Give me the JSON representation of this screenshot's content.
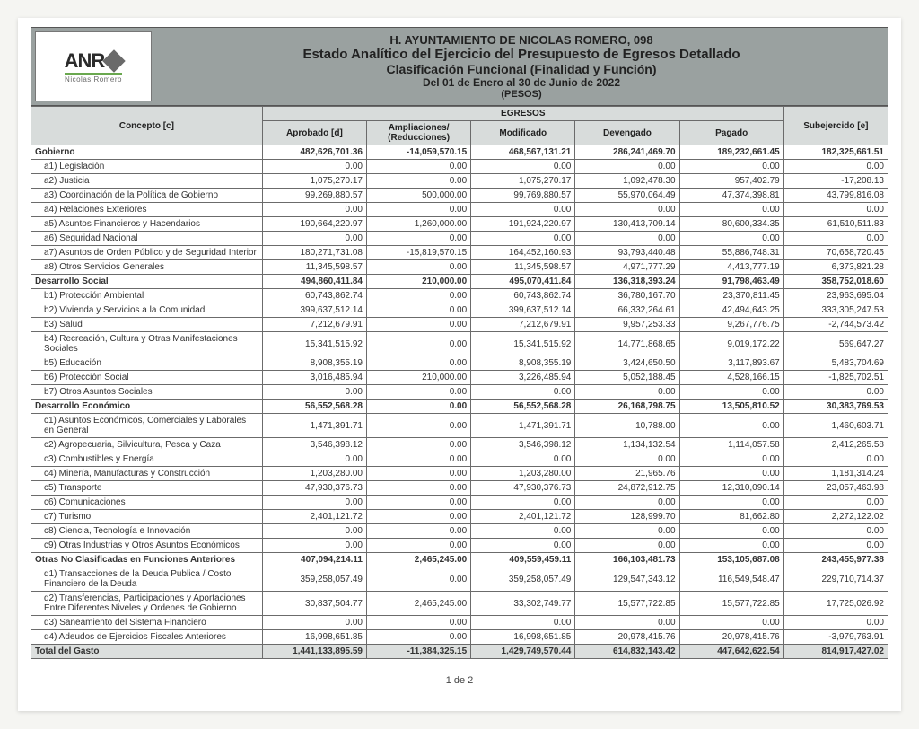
{
  "header": {
    "org_line": "H. AYUNTAMIENTO DE NICOLAS ROMERO, 098",
    "title": "Estado Analítico del Ejercicio del Presupuesto de Egresos Detallado",
    "subtitle": "Clasificación Funcional (Finalidad y Función)",
    "period": "Del 01 de Enero al 30 de Junio de 2022",
    "units": "(PESOS)",
    "logo_text": "ANR",
    "logo_sub": "Nicolas Romero"
  },
  "columns": {
    "concepto": "Concepto [c]",
    "egresos": "EGRESOS",
    "aprobado": "Aprobado [d]",
    "ampliaciones": "Ampliaciones/ (Reducciones)",
    "modificado": "Modificado",
    "devengado": "Devengado",
    "pagado": "Pagado",
    "subejercido": "Subejercido [e]"
  },
  "col_widths": {
    "concepto": "27%",
    "num": "12.17%"
  },
  "colors": {
    "header_bg": "#9aa1a0",
    "thead_bg": "#d8dcdb",
    "border": "#6b6b6b",
    "total_bg": "#dcdfde"
  },
  "rows": [
    {
      "k": "section",
      "label": "Gobierno",
      "v": [
        "482,626,701.36",
        "-14,059,570.15",
        "468,567,131.21",
        "286,241,469.70",
        "189,232,661.45",
        "182,325,661.51"
      ]
    },
    {
      "k": "row",
      "label": "a1) Legislación",
      "v": [
        "0.00",
        "0.00",
        "0.00",
        "0.00",
        "0.00",
        "0.00"
      ]
    },
    {
      "k": "row",
      "label": "a2) Justicia",
      "v": [
        "1,075,270.17",
        "0.00",
        "1,075,270.17",
        "1,092,478.30",
        "957,402.79",
        "-17,208.13"
      ]
    },
    {
      "k": "row",
      "label": "a3) Coordinación de la Política de Gobierno",
      "v": [
        "99,269,880.57",
        "500,000.00",
        "99,769,880.57",
        "55,970,064.49",
        "47,374,398.81",
        "43,799,816.08"
      ]
    },
    {
      "k": "row",
      "label": "a4) Relaciones Exteriores",
      "v": [
        "0.00",
        "0.00",
        "0.00",
        "0.00",
        "0.00",
        "0.00"
      ]
    },
    {
      "k": "row",
      "label": "a5) Asuntos Financieros y Hacendarios",
      "v": [
        "190,664,220.97",
        "1,260,000.00",
        "191,924,220.97",
        "130,413,709.14",
        "80,600,334.35",
        "61,510,511.83"
      ]
    },
    {
      "k": "row",
      "label": "a6) Seguridad Nacional",
      "v": [
        "0.00",
        "0.00",
        "0.00",
        "0.00",
        "0.00",
        "0.00"
      ]
    },
    {
      "k": "row",
      "label": "a7) Asuntos de Orden Público y de Seguridad Interior",
      "v": [
        "180,271,731.08",
        "-15,819,570.15",
        "164,452,160.93",
        "93,793,440.48",
        "55,886,748.31",
        "70,658,720.45"
      ]
    },
    {
      "k": "row",
      "label": "a8) Otros Servicios Generales",
      "v": [
        "11,345,598.57",
        "0.00",
        "11,345,598.57",
        "4,971,777.29",
        "4,413,777.19",
        "6,373,821.28"
      ]
    },
    {
      "k": "section",
      "label": "Desarrollo Social",
      "v": [
        "494,860,411.84",
        "210,000.00",
        "495,070,411.84",
        "136,318,393.24",
        "91,798,463.49",
        "358,752,018.60"
      ]
    },
    {
      "k": "row",
      "label": "b1) Protección Ambiental",
      "v": [
        "60,743,862.74",
        "0.00",
        "60,743,862.74",
        "36,780,167.70",
        "23,370,811.45",
        "23,963,695.04"
      ]
    },
    {
      "k": "row",
      "label": "b2) Vivienda y Servicios a la Comunidad",
      "v": [
        "399,637,512.14",
        "0.00",
        "399,637,512.14",
        "66,332,264.61",
        "42,494,643.25",
        "333,305,247.53"
      ]
    },
    {
      "k": "row",
      "label": "b3) Salud",
      "v": [
        "7,212,679.91",
        "0.00",
        "7,212,679.91",
        "9,957,253.33",
        "9,267,776.75",
        "-2,744,573.42"
      ]
    },
    {
      "k": "row",
      "label": "b4) Recreación, Cultura y Otras Manifestaciones Sociales",
      "v": [
        "15,341,515.92",
        "0.00",
        "15,341,515.92",
        "14,771,868.65",
        "9,019,172.22",
        "569,647.27"
      ]
    },
    {
      "k": "row",
      "label": "b5) Educación",
      "v": [
        "8,908,355.19",
        "0.00",
        "8,908,355.19",
        "3,424,650.50",
        "3,117,893.67",
        "5,483,704.69"
      ]
    },
    {
      "k": "row",
      "label": "b6) Protección Social",
      "v": [
        "3,016,485.94",
        "210,000.00",
        "3,226,485.94",
        "5,052,188.45",
        "4,528,166.15",
        "-1,825,702.51"
      ]
    },
    {
      "k": "row",
      "label": "b7) Otros Asuntos Sociales",
      "v": [
        "0.00",
        "0.00",
        "0.00",
        "0.00",
        "0.00",
        "0.00"
      ]
    },
    {
      "k": "section",
      "label": "Desarrollo Económico",
      "v": [
        "56,552,568.28",
        "0.00",
        "56,552,568.28",
        "26,168,798.75",
        "13,505,810.52",
        "30,383,769.53"
      ]
    },
    {
      "k": "row",
      "label": "c1) Asuntos Económicos, Comerciales y Laborales en General",
      "v": [
        "1,471,391.71",
        "0.00",
        "1,471,391.71",
        "10,788.00",
        "0.00",
        "1,460,603.71"
      ]
    },
    {
      "k": "row",
      "label": "c2) Agropecuaria, Silvicultura, Pesca y Caza",
      "v": [
        "3,546,398.12",
        "0.00",
        "3,546,398.12",
        "1,134,132.54",
        "1,114,057.58",
        "2,412,265.58"
      ]
    },
    {
      "k": "row",
      "label": "c3) Combustibles y Energía",
      "v": [
        "0.00",
        "0.00",
        "0.00",
        "0.00",
        "0.00",
        "0.00"
      ]
    },
    {
      "k": "row",
      "label": "c4) Minería, Manufacturas y Construcción",
      "v": [
        "1,203,280.00",
        "0.00",
        "1,203,280.00",
        "21,965.76",
        "0.00",
        "1,181,314.24"
      ]
    },
    {
      "k": "row",
      "label": "c5) Transporte",
      "v": [
        "47,930,376.73",
        "0.00",
        "47,930,376.73",
        "24,872,912.75",
        "12,310,090.14",
        "23,057,463.98"
      ]
    },
    {
      "k": "row",
      "label": "c6) Comunicaciones",
      "v": [
        "0.00",
        "0.00",
        "0.00",
        "0.00",
        "0.00",
        "0.00"
      ]
    },
    {
      "k": "row",
      "label": "c7) Turismo",
      "v": [
        "2,401,121.72",
        "0.00",
        "2,401,121.72",
        "128,999.70",
        "81,662.80",
        "2,272,122.02"
      ]
    },
    {
      "k": "row",
      "label": "c8) Ciencia, Tecnología e Innovación",
      "v": [
        "0.00",
        "0.00",
        "0.00",
        "0.00",
        "0.00",
        "0.00"
      ]
    },
    {
      "k": "row",
      "label": "c9) Otras Industrias y Otros Asuntos Económicos",
      "v": [
        "0.00",
        "0.00",
        "0.00",
        "0.00",
        "0.00",
        "0.00"
      ]
    },
    {
      "k": "section",
      "label": "Otras No Clasificadas en Funciones Anteriores",
      "v": [
        "407,094,214.11",
        "2,465,245.00",
        "409,559,459.11",
        "166,103,481.73",
        "153,105,687.08",
        "243,455,977.38"
      ]
    },
    {
      "k": "row",
      "label": "d1) Transacciones de la Deuda Publica / Costo Financiero de la Deuda",
      "v": [
        "359,258,057.49",
        "0.00",
        "359,258,057.49",
        "129,547,343.12",
        "116,549,548.47",
        "229,710,714.37"
      ]
    },
    {
      "k": "row",
      "label": "d2) Transferencias, Participaciones y Aportaciones Entre Diferentes Niveles y Ordenes de Gobierno",
      "v": [
        "30,837,504.77",
        "2,465,245.00",
        "33,302,749.77",
        "15,577,722.85",
        "15,577,722.85",
        "17,725,026.92"
      ]
    },
    {
      "k": "row",
      "label": "d3) Saneamiento del Sistema Financiero",
      "v": [
        "0.00",
        "0.00",
        "0.00",
        "0.00",
        "0.00",
        "0.00"
      ]
    },
    {
      "k": "row",
      "label": "d4) Adeudos de Ejercicios Fiscales Anteriores",
      "v": [
        "16,998,651.85",
        "0.00",
        "16,998,651.85",
        "20,978,415.76",
        "20,978,415.76",
        "-3,979,763.91"
      ]
    },
    {
      "k": "total",
      "label": "Total del Gasto",
      "v": [
        "1,441,133,895.59",
        "-11,384,325.15",
        "1,429,749,570.44",
        "614,832,143.42",
        "447,642,622.54",
        "814,917,427.02"
      ]
    }
  ],
  "pager": "1 de 2"
}
